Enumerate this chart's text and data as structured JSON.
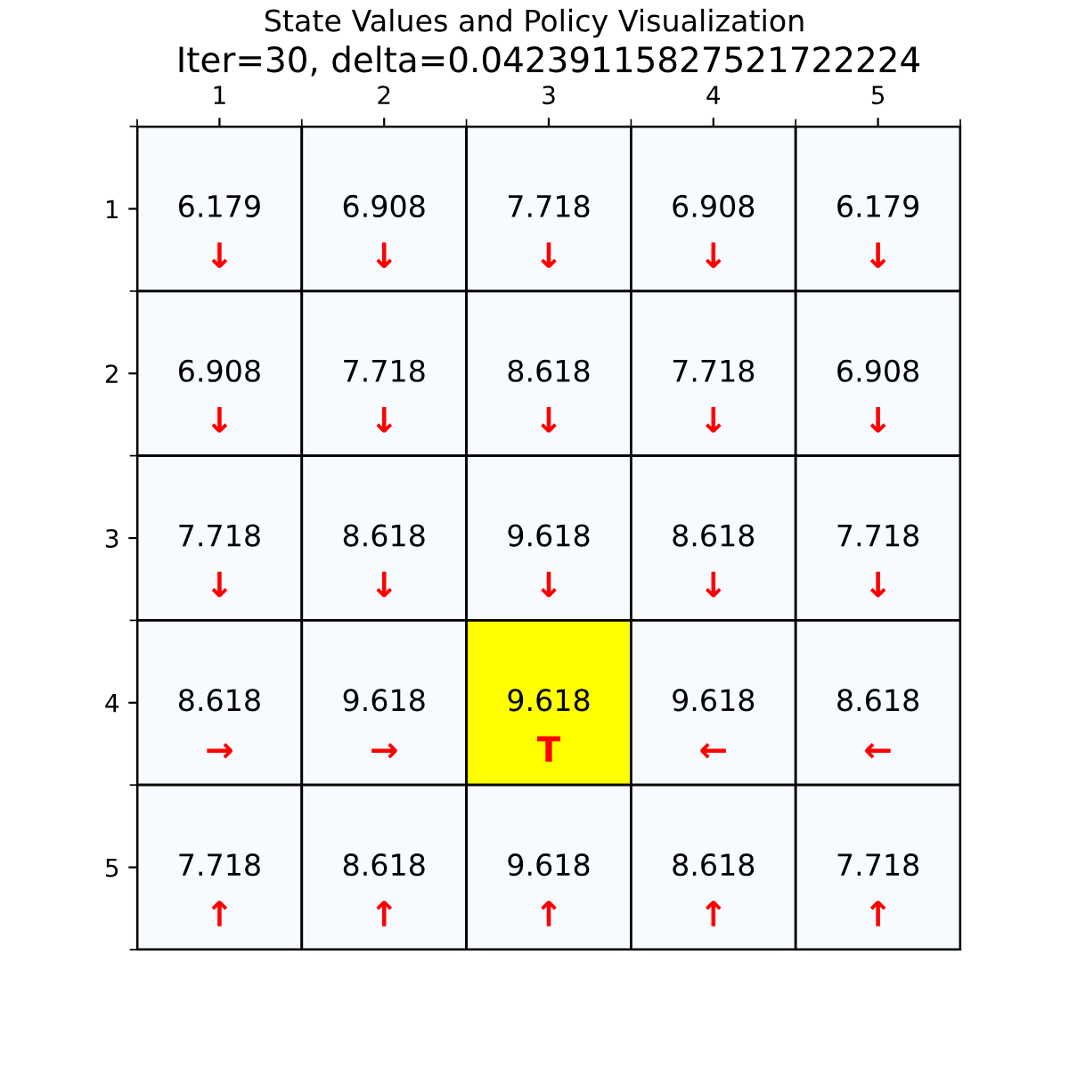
{
  "chart_data": {
    "type": "heatmap",
    "title": "State Values and Policy Visualization",
    "subtitle": "Iter=30, delta=0.04239115827521722224",
    "categories": [
      "1",
      "2",
      "3",
      "4",
      "5"
    ],
    "y_categories": [
      "1",
      "2",
      "3",
      "4",
      "5"
    ],
    "cells": [
      [
        6.179,
        6.908,
        7.718,
        6.908,
        6.179
      ],
      [
        6.908,
        7.718,
        8.618,
        7.718,
        6.908
      ],
      [
        7.718,
        8.618,
        9.618,
        8.618,
        7.718
      ],
      [
        8.618,
        9.618,
        9.618,
        9.618,
        8.618
      ],
      [
        7.718,
        8.618,
        9.618,
        8.618,
        7.718
      ]
    ],
    "cell_labels": [
      [
        "6.179\n↓",
        "6.908\n↓",
        "7.718\n↓",
        "6.908\n↓",
        "6.179\n↓"
      ],
      [
        "6.908\n↓",
        "7.718\n↓",
        "8.618\n↓",
        "7.718\n↓",
        "6.908\n↓"
      ],
      [
        "7.718\n↓",
        "8.618\n↓",
        "9.618\n↓",
        "8.618\n↓",
        "7.718\n↓"
      ],
      [
        "8.618\n→",
        "9.618\n→",
        "9.618\nT",
        "9.618\n←",
        "8.618\n←"
      ],
      [
        "7.718\n↑",
        "8.618\n↑",
        "9.618\n↑",
        "8.618\n↑",
        "7.718\n↑"
      ]
    ],
    "colors": [
      [
        "#f7fbff",
        "#f7fbff",
        "#f7fbff",
        "#f7fbff",
        "#f7fbff"
      ],
      [
        "#f7fbff",
        "#f7fbff",
        "#f7fbff",
        "#f7fbff",
        "#f7fbff"
      ],
      [
        "#f7fbff",
        "#f7fbff",
        "#f7fbff",
        "#f7fbff",
        "#f7fbff"
      ],
      [
        "#f7fbff",
        "#f7fbff",
        "#ffff00",
        "#f7fbff",
        "#f7fbff"
      ],
      [
        "#f7fbff",
        "#f7fbff",
        "#f7fbff",
        "#f7fbff",
        "#f7fbff"
      ]
    ]
  }
}
